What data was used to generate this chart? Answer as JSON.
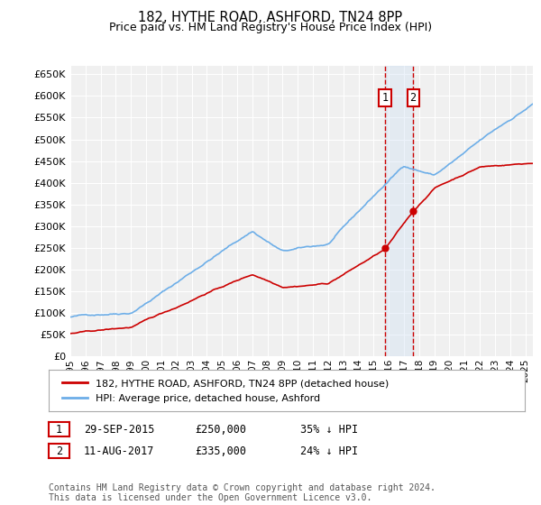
{
  "title": "182, HYTHE ROAD, ASHFORD, TN24 8PP",
  "subtitle": "Price paid vs. HM Land Registry's House Price Index (HPI)",
  "hpi_color": "#6daee8",
  "price_color": "#cc0000",
  "annotation_fill": "#ccdff5",
  "annotation_border": "#cc0000",
  "vline_color": "#cc0000",
  "ylim": [
    0,
    670000
  ],
  "yticks": [
    0,
    50000,
    100000,
    150000,
    200000,
    250000,
    300000,
    350000,
    400000,
    450000,
    500000,
    550000,
    600000,
    650000
  ],
  "xlim_start": 1995.0,
  "xlim_end": 2025.5,
  "transaction1": {
    "year": 2015.75,
    "price": 250000,
    "label": "1",
    "date": "29-SEP-2015",
    "pct": "35%"
  },
  "transaction2": {
    "year": 2017.6,
    "price": 335000,
    "label": "2",
    "date": "11-AUG-2017",
    "pct": "24%"
  },
  "legend_label1": "182, HYTHE ROAD, ASHFORD, TN24 8PP (detached house)",
  "legend_label2": "HPI: Average price, detached house, Ashford",
  "footer": "Contains HM Land Registry data © Crown copyright and database right 2024.\nThis data is licensed under the Open Government Licence v3.0."
}
